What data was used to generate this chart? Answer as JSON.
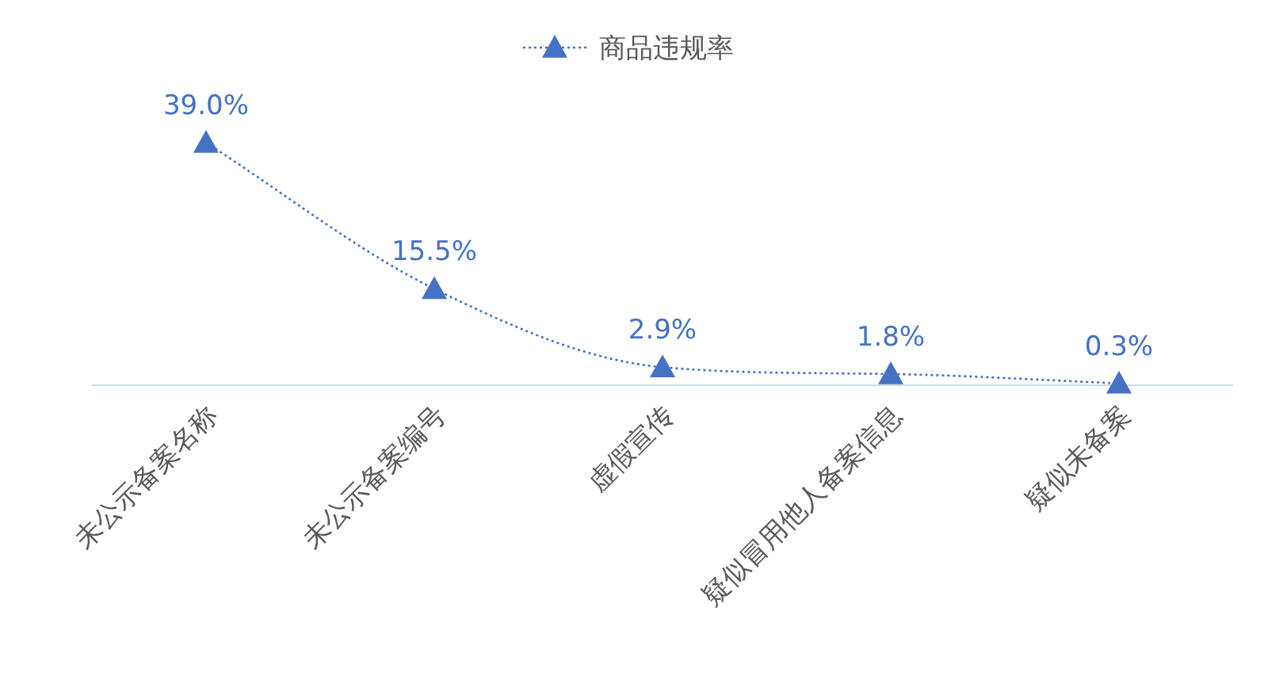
{
  "chart_data": {
    "type": "line",
    "categories": [
      "未公示备案名称",
      "未公示备案编号",
      "虚假宣传",
      "疑似冒用他人备案信息",
      "疑似未备案"
    ],
    "series": [
      {
        "name": "商品违规率",
        "color": "#4472c4",
        "values": [
          39.0,
          15.5,
          2.9,
          1.8,
          0.3
        ],
        "value_labels": [
          "39.0%",
          "15.5%",
          "2.9%",
          "1.8%",
          "0.3%"
        ]
      }
    ],
    "legend": "top",
    "marker": "triangle",
    "line_style": "dotted"
  }
}
